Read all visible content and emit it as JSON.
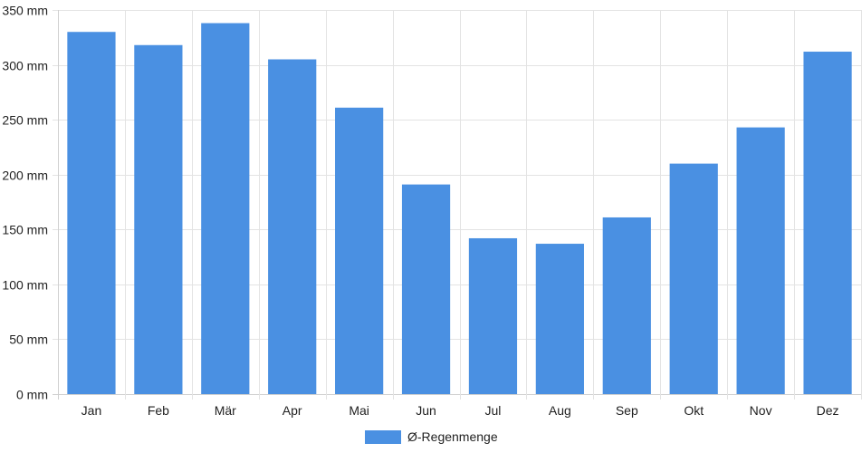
{
  "chart_data": {
    "type": "bar",
    "categories": [
      "Jan",
      "Feb",
      "Mär",
      "Apr",
      "Mai",
      "Jun",
      "Jul",
      "Aug",
      "Sep",
      "Okt",
      "Nov",
      "Dez"
    ],
    "series": [
      {
        "name": "Ø-Regenmenge",
        "color": "#4a90e2",
        "values": [
          330,
          318,
          338,
          305,
          261,
          191,
          142,
          137,
          161,
          210,
          243,
          312
        ]
      }
    ],
    "ylim": [
      0,
      350
    ],
    "yticks": [
      0,
      50,
      100,
      150,
      200,
      250,
      300,
      350
    ],
    "ytick_labels": [
      "0 mm",
      "50 mm",
      "100 mm",
      "150 mm",
      "200 mm",
      "250 mm",
      "300 mm",
      "350 mm"
    ],
    "grid": true,
    "legend_position": "bottom"
  }
}
